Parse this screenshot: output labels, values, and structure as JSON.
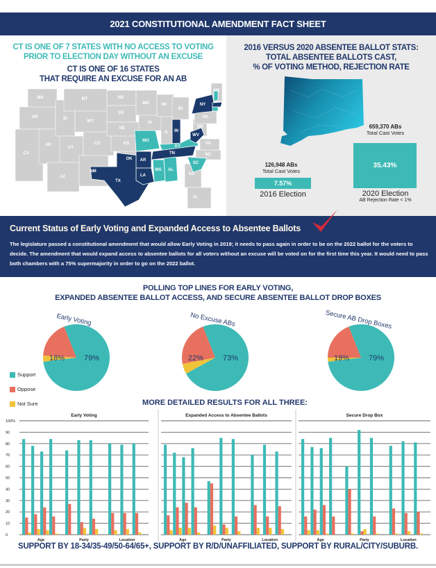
{
  "header": {
    "title": "2021 CONSTITUTIONAL AMENDMENT FACT SHEET"
  },
  "left": {
    "title_line1": "CT IS ONE OF 7 STATES WITH NO ACCESS TO VOTING",
    "title_line2": "PRIOR TO ELECTION DAY WITHOUT AN EXCUSE",
    "sub_line1": "CT IS ONE OF 16 STATES",
    "sub_line2": "THAT REQUIRE AN EXCUSE FOR AN AB",
    "map": {
      "no_early_voting_states": [
        "NY",
        "IN",
        "WV",
        "TN",
        "AR",
        "LA",
        "TX",
        "MA",
        "NH",
        "CT"
      ],
      "excuse_required_states": [
        "MO",
        "KY",
        "MS",
        "AL",
        "SC",
        "NH",
        "CT"
      ],
      "colors": {
        "navy": "#1b3a6b",
        "teal": "#3dbab6",
        "grey": "#cfcfcf"
      },
      "labels": [
        "WA",
        "OR",
        "CA",
        "NV",
        "ID",
        "MT",
        "WY",
        "UT",
        "AZ",
        "CO",
        "NM",
        "ND",
        "SD",
        "NE",
        "KS",
        "OK",
        "TX",
        "MN",
        "IA",
        "MO",
        "AR",
        "LA",
        "WI",
        "IL",
        "MI",
        "IN",
        "OH",
        "KY",
        "TN",
        "MS",
        "AL",
        "GA",
        "FL",
        "SC",
        "NC",
        "VA",
        "WV",
        "PA",
        "NY",
        "ME"
      ]
    }
  },
  "right": {
    "title_line1": "2016 VERSUS 2020 ABSENTEE BALLOT STATS:",
    "title_line2": "TOTAL ABSENTEE BALLOTS CAST,",
    "title_line3": "% OF VOTING METHOD, REJECTION RATE",
    "e2016": {
      "count": "126,948 ABs",
      "caption": "Total Cast Votes",
      "pct": "7.57%",
      "label": "2016 Election"
    },
    "e2020": {
      "count": "659,370 ABs",
      "caption": "Total Cast Votes",
      "pct": "35.43%",
      "label": "2020 Election",
      "note": "AB Rejection Rate < 1%"
    }
  },
  "status": {
    "title": "Current Status of Early Voting and Expanded Access to Absentee Ballots",
    "body": "The legislature passed a constitutional amendment that would allow Early Voting in 2019; it needs to pass again in order to be on the 2022 ballot for the voters to decide. The amendment that would expand access to absentee ballots for all voters without an excuse will be voted on for the first time this year. It would need to pass both chambers with a 75% supermajority in order to go on the 2022 ballot."
  },
  "poll": {
    "title_line1": "POLLING TOP LINES FOR EARLY VOTING,",
    "title_line2": "EXPANDED ABSENTEE BALLOT ACCESS, AND SECURE ABSENTEE BALLOT DROP BOXES",
    "legend": [
      {
        "label": "Support",
        "color": "#3dbab6"
      },
      {
        "label": "Oppose",
        "color": "#e8705f"
      },
      {
        "label": "Not Sure",
        "color": "#f0c43a"
      }
    ]
  },
  "more": {
    "title": "MORE DETAILED RESULTS FOR ALL THREE:"
  },
  "footer": {
    "text": "SUPPORT BY 18-34/35-49/50-64/65+, SUPPORT BY R/D/UNAFFILIATED, SUPPORT BY RURAL/CITY/SUBURB."
  },
  "chart_data": [
    {
      "type": "pie",
      "title": "Early Voting",
      "labels": [
        "Support",
        "Oppose",
        "Not Sure"
      ],
      "values": [
        79,
        18,
        3
      ],
      "data_labels": [
        "79%",
        "18%",
        ""
      ]
    },
    {
      "type": "pie",
      "title": "No Excuse ABs",
      "labels": [
        "Support",
        "Oppose",
        "Not Sure"
      ],
      "values": [
        73,
        22,
        5
      ],
      "data_labels": [
        "73%",
        "22%",
        ""
      ]
    },
    {
      "type": "pie",
      "title": "Secure AB Drop Boxes",
      "labels": [
        "Support",
        "Oppose",
        "Not Sure"
      ],
      "values": [
        79,
        19,
        2
      ],
      "data_labels": [
        "79%",
        "19%",
        ""
      ]
    },
    {
      "type": "bar",
      "title": "Early Voting",
      "ylim": [
        0,
        100
      ],
      "yticks": [
        "0",
        "10",
        "20",
        "30",
        "40",
        "50",
        "60",
        "70",
        "80",
        "90",
        "100%"
      ],
      "groups": [
        {
          "name": "Age",
          "support": [
            84,
            78,
            73,
            84
          ],
          "oppose": [
            15,
            18,
            24,
            16
          ],
          "not_sure": [
            2,
            5,
            4,
            1
          ]
        },
        {
          "name": "Party",
          "support": [
            74,
            83,
            83
          ],
          "oppose": [
            27,
            11,
            14
          ],
          "not_sure": [
            0,
            6,
            5
          ]
        },
        {
          "name": "Location",
          "support": [
            80,
            79,
            80
          ],
          "oppose": [
            19,
            19,
            19
          ],
          "not_sure": [
            4,
            5,
            2
          ]
        }
      ]
    },
    {
      "type": "bar",
      "title": "Expanded Access to Absentee Ballots",
      "ylim": [
        0,
        100
      ],
      "groups": [
        {
          "name": "Age",
          "support": [
            79,
            72,
            68,
            76
          ],
          "oppose": [
            17,
            24,
            28,
            24
          ],
          "not_sure": [
            4,
            6,
            6,
            2
          ]
        },
        {
          "name": "Party",
          "support": [
            47,
            85,
            84
          ],
          "oppose": [
            45,
            9,
            16
          ],
          "not_sure": [
            8,
            6,
            3
          ]
        },
        {
          "name": "Location",
          "support": [
            70,
            79,
            73
          ],
          "oppose": [
            26,
            16,
            25
          ],
          "not_sure": [
            6,
            6,
            5
          ]
        }
      ]
    },
    {
      "type": "bar",
      "title": "Secure Drop Box",
      "ylim": [
        0,
        100
      ],
      "groups": [
        {
          "name": "Age",
          "support": [
            84,
            77,
            76,
            85
          ],
          "oppose": [
            16,
            22,
            26,
            16
          ],
          "not_sure": [
            4,
            4,
            1,
            0
          ]
        },
        {
          "name": "Party",
          "support": [
            60,
            92,
            85
          ],
          "oppose": [
            40,
            3,
            16
          ],
          "not_sure": [
            1,
            5,
            1
          ]
        },
        {
          "name": "Location",
          "support": [
            78,
            82,
            81
          ],
          "oppose": [
            23,
            19,
            20
          ],
          "not_sure": [
            1,
            3,
            1
          ]
        }
      ]
    }
  ]
}
